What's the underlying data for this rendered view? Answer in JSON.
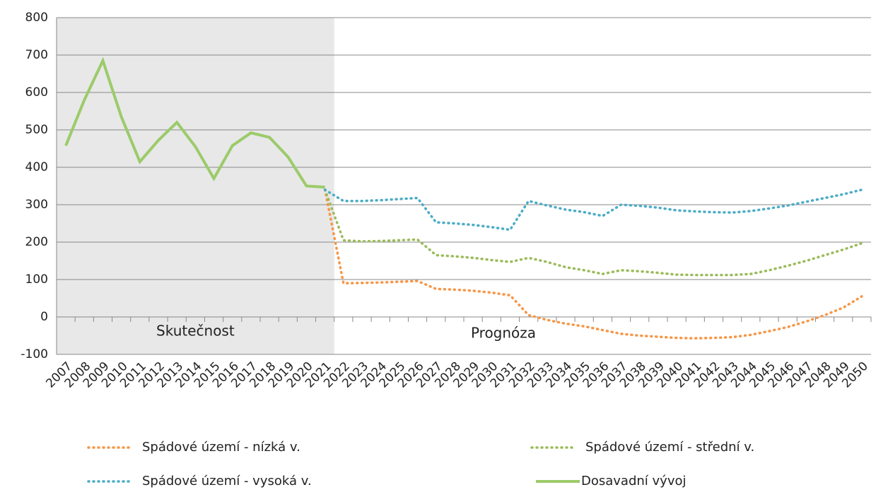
{
  "chart_data": {
    "type": "line",
    "categories": [
      "2007",
      "2008",
      "2009",
      "2010",
      "2011",
      "2012",
      "2013",
      "2014",
      "2015",
      "2016",
      "2017",
      "2018",
      "2019",
      "2020",
      "2021",
      "2022",
      "2023",
      "2024",
      "2025",
      "2026",
      "2027",
      "2028",
      "2029",
      "2030",
      "2031",
      "2032",
      "2033",
      "2034",
      "2035",
      "2036",
      "2037",
      "2038",
      "2039",
      "2040",
      "2041",
      "2042",
      "2043",
      "2044",
      "2045",
      "2046",
      "2047",
      "2048",
      "2049",
      "2050"
    ],
    "series": [
      {
        "name": "Spádové území - nízká v.",
        "color": "#f79646",
        "line_style": "dotted",
        "values": [
          null,
          null,
          null,
          null,
          null,
          null,
          null,
          null,
          null,
          null,
          null,
          null,
          null,
          null,
          340,
          90,
          91,
          92,
          94,
          96,
          75,
          73,
          70,
          65,
          58,
          5,
          -8,
          -18,
          -25,
          -35,
          -45,
          -50,
          -53,
          -56,
          -57,
          -56,
          -54,
          -48,
          -38,
          -27,
          -12,
          5,
          25,
          55
        ]
      },
      {
        "name": "Spádové území - střední v.",
        "color": "#9bbb59",
        "line_style": "dotted",
        "values": [
          null,
          null,
          null,
          null,
          null,
          null,
          null,
          null,
          null,
          null,
          null,
          null,
          null,
          null,
          340,
          205,
          202,
          203,
          205,
          207,
          165,
          162,
          158,
          152,
          147,
          158,
          147,
          133,
          125,
          115,
          125,
          122,
          118,
          113,
          112,
          112,
          112,
          115,
          125,
          137,
          150,
          165,
          180,
          197
        ]
      },
      {
        "name": "Spádové území - vysoká v.",
        "color": "#4bacc6",
        "line_style": "dotted",
        "values": [
          null,
          null,
          null,
          null,
          null,
          null,
          null,
          null,
          null,
          null,
          null,
          null,
          null,
          null,
          340,
          310,
          310,
          312,
          315,
          318,
          253,
          250,
          246,
          240,
          233,
          310,
          298,
          287,
          280,
          270,
          300,
          297,
          292,
          285,
          282,
          280,
          279,
          283,
          290,
          298,
          308,
          318,
          328,
          340
        ]
      },
      {
        "name": "Dosavadní vývoj",
        "color": "#9bcb6a",
        "line_style": "solid",
        "values": [
          458,
          580,
          685,
          535,
          415,
          472,
          520,
          455,
          370,
          458,
          492,
          480,
          428,
          350,
          347,
          null,
          null,
          null,
          null,
          null,
          null,
          null,
          null,
          null,
          null,
          null,
          null,
          null,
          null,
          null,
          null,
          null,
          null,
          null,
          null,
          null,
          null,
          null,
          null,
          null,
          null,
          null,
          null,
          null
        ]
      }
    ],
    "annotations": [
      "Skutečnost",
      "Prognóza"
    ],
    "ylim": [
      -100,
      800
    ],
    "yticks": [
      -100,
      0,
      100,
      200,
      300,
      400,
      500,
      600,
      700,
      800
    ],
    "grid": true
  }
}
